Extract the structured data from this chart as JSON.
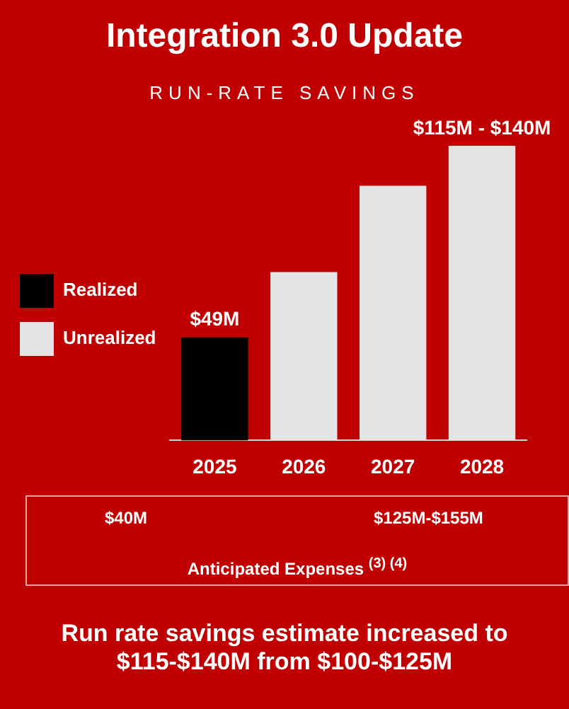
{
  "chart_data": {
    "type": "bar",
    "title": "Integration 3.0 Update",
    "subtitle": "RUN-RATE SAVINGS",
    "categories": [
      "2025",
      "2026",
      "2027",
      "2028"
    ],
    "stacked": true,
    "legend": "left",
    "series": [
      {
        "name": "Realized",
        "color": "#000000",
        "values": [
          49,
          null,
          null,
          null
        ],
        "value_labels": [
          "$49M",
          null,
          null,
          null
        ]
      },
      {
        "name": "Unrealized",
        "color": "#e4e4e4",
        "values": [
          null,
          80,
          121,
          140
        ]
      }
    ],
    "annotations": [
      "$40M",
      "$125M-$155M",
      "Anticipated Expenses $^{(3) (4)}$",
      "Run rate savings estimate increased to $115-$140M from $100-$125M",
      {
        "text": "$115M - $140M",
        "x": "2028",
        "y": 140
      }
    ]
  }
}
